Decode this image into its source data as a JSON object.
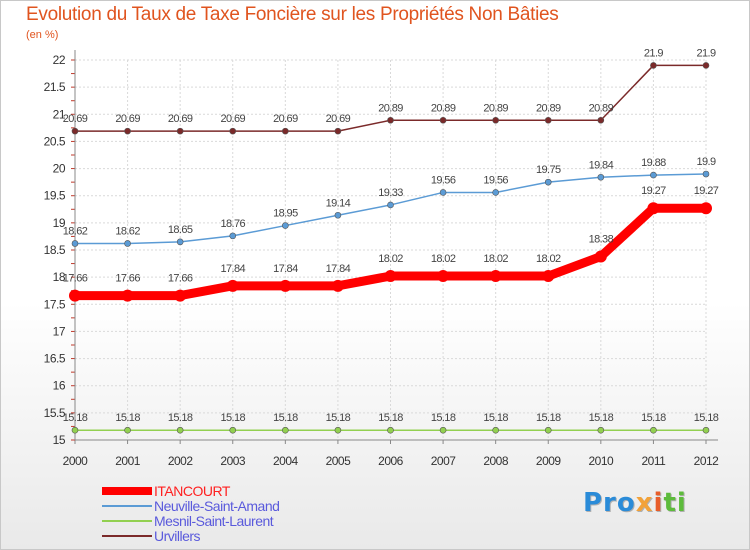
{
  "title": "Evolution du Taux de Taxe Foncière sur les Propriétés Non Bâties",
  "unit": "(en %)",
  "logo": {
    "p1": "Pro",
    "p2": "x",
    "p3": "i",
    "p4": "ti"
  },
  "chart_data": {
    "type": "line",
    "title": "Evolution du Taux de Taxe Foncière sur les Propriétés Non Bâties",
    "ylabel": "(en %)",
    "xlabel": "",
    "ylim": [
      15,
      22
    ],
    "grid": true,
    "legend_position": "bottom-left",
    "x": [
      "2000",
      "2001",
      "2002",
      "2003",
      "2004",
      "2005",
      "2006",
      "2007",
      "2008",
      "2009",
      "2010",
      "2011",
      "2012"
    ],
    "yticks": [
      "15",
      "15.5",
      "16",
      "16.5",
      "17",
      "17.5",
      "18",
      "18.5",
      "19",
      "19.5",
      "20",
      "20.5",
      "21",
      "21.5",
      "22"
    ],
    "series": [
      {
        "name": "ITANCOURT",
        "color": "#ff0000",
        "values": [
          17.66,
          17.66,
          17.66,
          17.84,
          17.84,
          17.84,
          18.02,
          18.02,
          18.02,
          18.02,
          18.38,
          19.27,
          19.27
        ]
      },
      {
        "name": "Neuville-Saint-Amand",
        "color": "#5b9bd5",
        "values": [
          18.62,
          18.62,
          18.65,
          18.76,
          18.95,
          19.14,
          19.33,
          19.56,
          19.56,
          19.75,
          19.84,
          19.88,
          19.9
        ]
      },
      {
        "name": "Mesnil-Saint-Laurent",
        "color": "#92d050",
        "values": [
          15.18,
          15.18,
          15.18,
          15.18,
          15.18,
          15.18,
          15.18,
          15.18,
          15.18,
          15.18,
          15.18,
          15.18,
          15.18
        ]
      },
      {
        "name": "Urvillers",
        "color": "#7b2a2a",
        "values": [
          20.69,
          20.69,
          20.69,
          20.69,
          20.69,
          20.69,
          20.89,
          20.89,
          20.89,
          20.89,
          20.89,
          21.9,
          21.9
        ]
      }
    ],
    "data_labels": [
      [
        "17.66",
        "17.66",
        "17.66",
        "17.84",
        "17.84",
        "17.84",
        "18.02",
        "18.02",
        "18.02",
        "18.02",
        "18.38",
        "19.27",
        "19.27"
      ],
      [
        "18.62",
        "18.62",
        "18.65",
        "18.76",
        "18.95",
        "19.14",
        "19.33",
        "19.56",
        "19.56",
        "19.75",
        "19.84",
        "19.88",
        "19.9"
      ],
      [
        "15.18",
        "15.18",
        "15.18",
        "15.18",
        "15.18",
        "15.18",
        "15.18",
        "15.18",
        "15.18",
        "15.18",
        "15.18",
        "15.18",
        "15.18"
      ],
      [
        "20.69",
        "20.69",
        "20.69",
        "20.69",
        "20.69",
        "20.69",
        "20.89",
        "20.89",
        "20.89",
        "20.89",
        "20.89",
        "21.9",
        "21.9"
      ]
    ]
  }
}
